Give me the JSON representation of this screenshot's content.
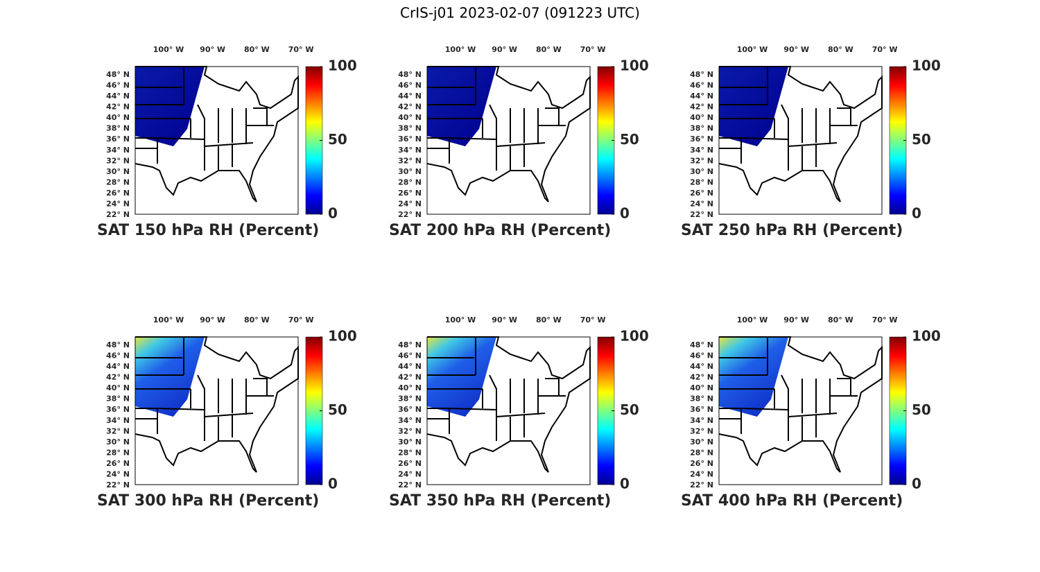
{
  "title": "CrIS-j01 2023-02-07 (091223 UTC)",
  "lon_ticks": [
    {
      "value": -100,
      "label": "100° W"
    },
    {
      "value": -90,
      "label": "90° W"
    },
    {
      "value": -80,
      "label": "80° W"
    },
    {
      "value": -70,
      "label": "70° W"
    }
  ],
  "lat_ticks": [
    {
      "value": 48,
      "label": "48° N"
    },
    {
      "value": 46,
      "label": "46° N"
    },
    {
      "value": 44,
      "label": "44° N"
    },
    {
      "value": 42,
      "label": "42° N"
    },
    {
      "value": 40,
      "label": "40° N"
    },
    {
      "value": 38,
      "label": "38° N"
    },
    {
      "value": 36,
      "label": "36° N"
    },
    {
      "value": 34,
      "label": "34° N"
    },
    {
      "value": 32,
      "label": "32° N"
    },
    {
      "value": 30,
      "label": "30° N"
    },
    {
      "value": 28,
      "label": "28° N"
    },
    {
      "value": 26,
      "label": "26° N"
    },
    {
      "value": 24,
      "label": "24° N"
    },
    {
      "value": 22,
      "label": "22° N"
    }
  ],
  "colorbar": {
    "lim": [
      0,
      100
    ],
    "ticks": [
      0,
      50,
      100
    ]
  },
  "panels": [
    {
      "title": "SAT 150 hPa RH (Percent)"
    },
    {
      "title": "SAT 200 hPa RH (Percent)"
    },
    {
      "title": "SAT 250 hPa RH (Percent)"
    },
    {
      "title": "SAT 300 hPa RH (Percent)"
    },
    {
      "title": "SAT 350 hPa RH (Percent)"
    },
    {
      "title": "SAT 400 hPa RH (Percent)"
    }
  ]
}
